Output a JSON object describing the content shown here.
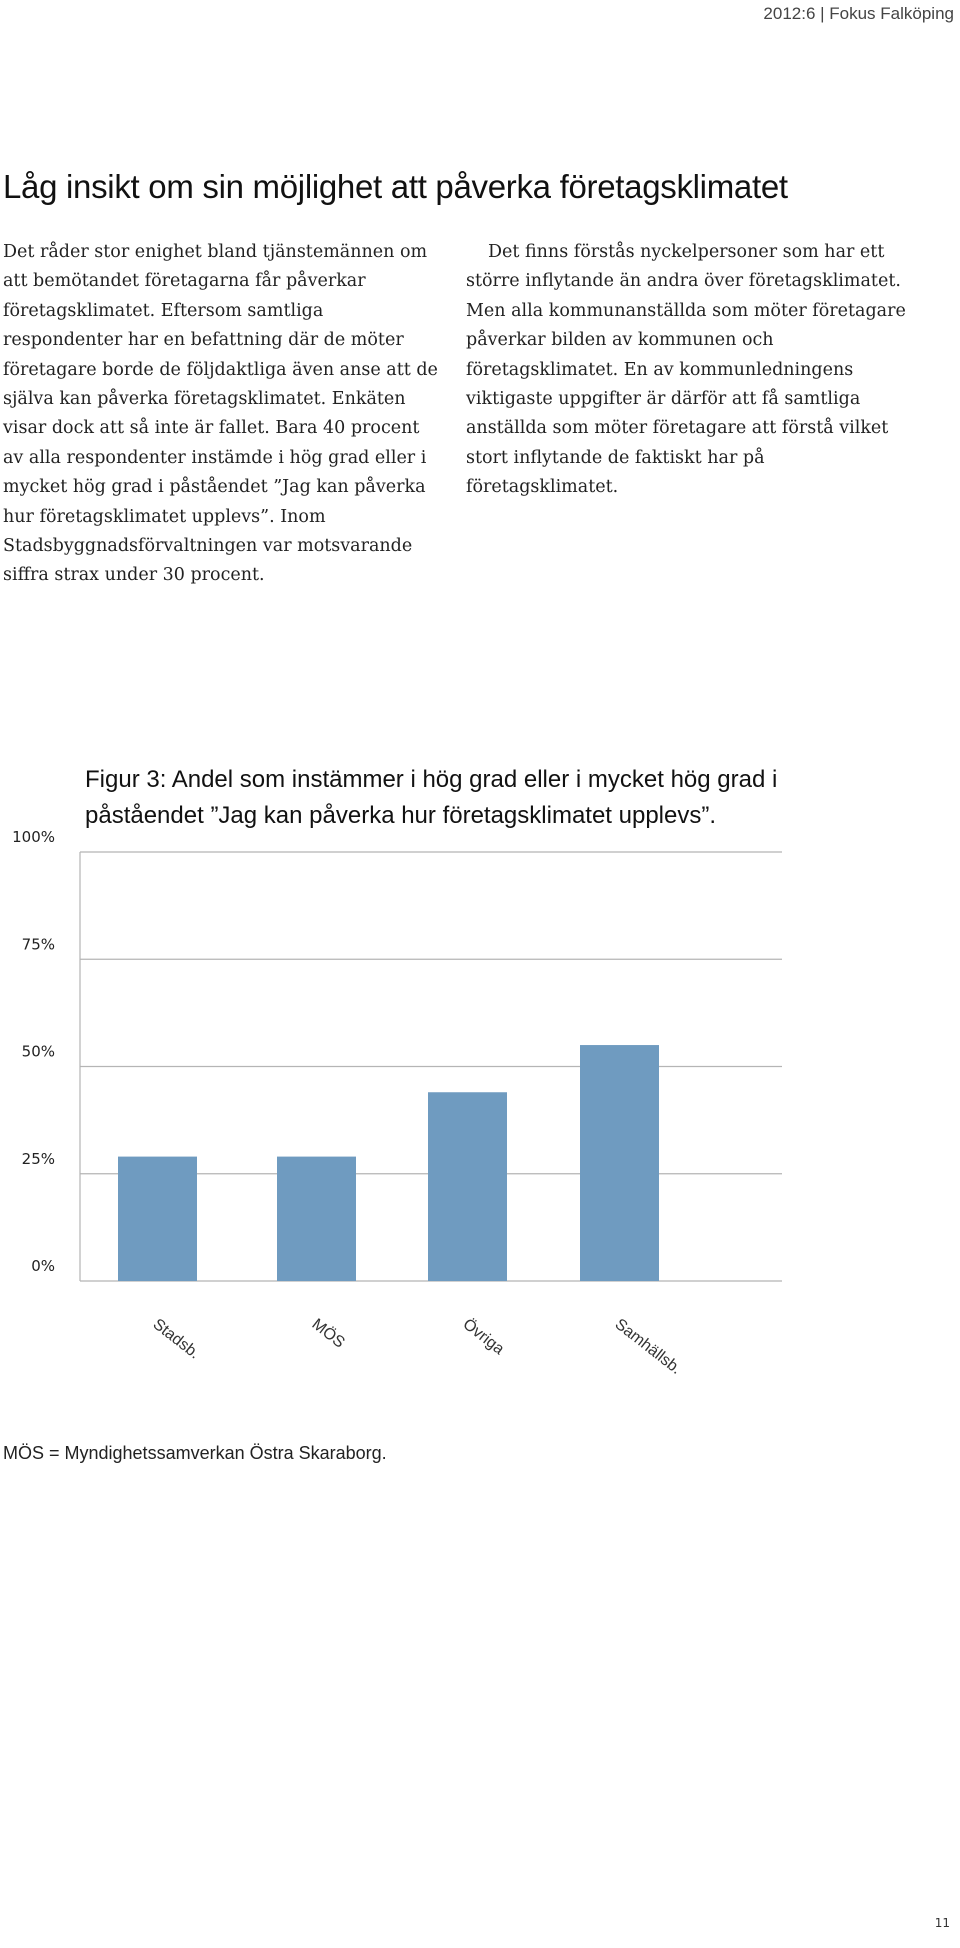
{
  "header": {
    "running_title": "2012:6 | Fokus Falköping"
  },
  "article": {
    "title": "Låg insikt om sin möjlighet att påverka företagsklimatet",
    "col_left": "Det råder stor enighet bland tjänstemännen om att bemötandet företagarna får påverkar företagsklimatet. Eftersom samtliga respondenter har en befattning där de möter företagare borde de följdaktliga även anse att de själva kan påverka företagsklimatet. Enkäten visar dock att så inte är fallet. Bara 40 procent av alla respondenter instämde i hög grad eller i mycket hög grad i påståendet ”Jag kan påverka hur företagsklimatet upplevs”. Inom Stadsbyggnadsförvaltningen var motsvarande siffra strax under 30 procent.",
    "col_right": "Det finns förstås nyckelpersoner som har ett större inflytande än andra över företagsklimatet. Men alla kommunanställda som möter företagare påverkar bilden av kommunen och företagsklimatet. En av kommunledningens viktigaste uppgifter är därför att få samtliga anställda som möter företagare att förstå vilket stort inflytande de faktiskt har på företagsklimatet."
  },
  "figure": {
    "title": "Figur 3: Andel som instämmer i hög grad eller i mycket hög grad i påståendet ”Jag kan påverka hur företagsklimatet upplevs”.",
    "note": "MÖS = Myndighetssamverkan Östra Skaraborg."
  },
  "chart_data": {
    "type": "bar",
    "categories": [
      "Stadsb.",
      "MÖS",
      "Övriga",
      "Samhällsb."
    ],
    "values": [
      29,
      29,
      44,
      55
    ],
    "yticks": [
      0,
      25,
      50,
      75,
      100
    ],
    "ytick_labels": [
      "0%",
      "25%",
      "50%",
      "75%",
      "100%"
    ],
    "ylim": [
      0,
      100
    ],
    "bar_color": "#6f9bc0",
    "grid": "horizontal"
  },
  "footer": {
    "page_number": "11"
  }
}
